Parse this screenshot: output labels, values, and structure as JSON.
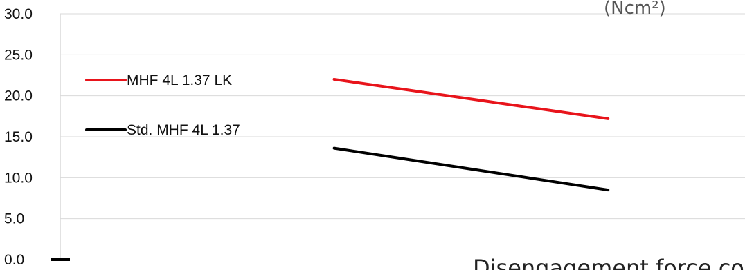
{
  "chart_data": {
    "type": "line",
    "title": "",
    "xlabel": "",
    "ylabel": "",
    "x": [
      1,
      2
    ],
    "xlim": [
      0,
      2.5
    ],
    "ylim": [
      0,
      30
    ],
    "yticks": [
      "0.0",
      "5.0",
      "10.0",
      "15.0",
      "20.0",
      "25.0",
      "30.0"
    ],
    "grid": true,
    "legend_position": "left",
    "series": [
      {
        "name": "MHF 4L 1.37 LK",
        "color": "#e8141b",
        "values": [
          22.0,
          17.2
        ]
      },
      {
        "name": "Std. MHF 4L 1.37",
        "color": "#000000",
        "values": [
          13.6,
          8.5
        ]
      }
    ]
  },
  "caption": "Disengagement force co",
  "corner_text": "(Ncm²)"
}
